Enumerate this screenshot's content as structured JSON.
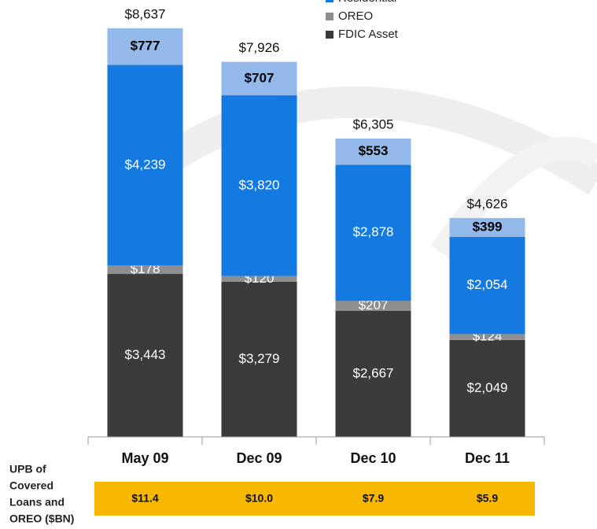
{
  "chart_data": {
    "type": "stacked_bar",
    "categories": [
      "May 09",
      "Dec 09",
      "Dec 10",
      "Dec 11"
    ],
    "series": [
      {
        "name": "FDIC Asset",
        "color": "#3b3b3b",
        "label_color": "#ffffff",
        "values": [
          3443,
          3279,
          2667,
          2049
        ],
        "value_labels": [
          "$3,443",
          "$3,279",
          "$2,667",
          "$2,049"
        ]
      },
      {
        "name": "OREO",
        "color": "#8e8e8e",
        "label_color": "#ffffff",
        "values": [
          178,
          120,
          207,
          124
        ],
        "value_labels": [
          "$178",
          "$120",
          "$207",
          "$124"
        ]
      },
      {
        "name": "Residential",
        "color": "#1479e0",
        "label_color": "#ffffff",
        "values": [
          4239,
          3820,
          2878,
          2054
        ],
        "value_labels": [
          "$4,239",
          "$3,820",
          "$2,878",
          "$2,054"
        ]
      },
      {
        "color": "#92b9ea",
        "label_color": "#000000",
        "values": [
          777,
          707,
          553,
          399
        ],
        "value_labels": [
          "$777",
          "$707",
          "$553",
          "$399"
        ]
      }
    ],
    "totals": [
      8637,
      7926,
      6305,
      4626
    ],
    "total_labels": [
      "$8,637",
      "$7,926",
      "$6,305",
      "$4,626"
    ],
    "ylim": [
      0,
      9000
    ],
    "upb": {
      "label": [
        "UPB of",
        "Covered",
        "Loans and",
        "OREO ($BN)"
      ],
      "values": [
        "$11.4",
        "$10.0",
        "$7.9",
        "$5.9"
      ],
      "color": "#f8b800"
    }
  }
}
